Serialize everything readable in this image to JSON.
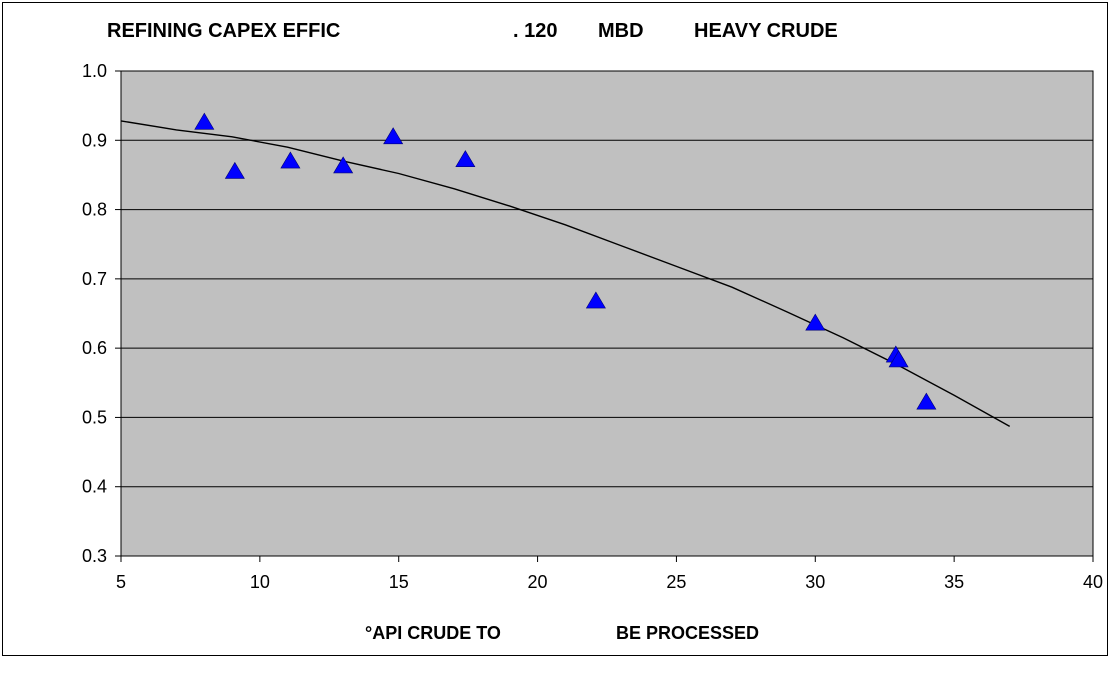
{
  "chart_data": {
    "type": "scatter",
    "title_parts": [
      "REFINING CAPEX EFFIC",
      ". 120",
      "MBD",
      "HEAVY CRUDE"
    ],
    "xlabel_parts": [
      "°API CRUDE TO",
      "BE PROCESSED"
    ],
    "ylabel": "",
    "xlim": [
      5,
      40
    ],
    "ylim": [
      0.3,
      1.0
    ],
    "xticks": [
      5,
      10,
      15,
      20,
      25,
      30,
      35,
      40
    ],
    "yticks": [
      "0.3",
      "0.4",
      "0.5",
      "0.6",
      "0.7",
      "0.8",
      "0.9",
      "1.0"
    ],
    "grid": "horizontal",
    "colors": {
      "plot_bg": "#c0c0c0",
      "marker": "#0000ff",
      "trendline": "#000000"
    },
    "series": [
      {
        "marker": "triangle",
        "x": [
          8.0,
          9.1,
          11.1,
          13.0,
          14.8,
          17.4,
          22.1,
          30.0,
          32.9,
          33.0,
          34.0
        ],
        "y": [
          0.926,
          0.855,
          0.87,
          0.863,
          0.905,
          0.872,
          0.668,
          0.636,
          0.59,
          0.583,
          0.522
        ]
      }
    ],
    "trendline": {
      "x": [
        5,
        7,
        9,
        11,
        13,
        15,
        17,
        19,
        21,
        23,
        25,
        27,
        29,
        31,
        33,
        35,
        37
      ],
      "y": [
        0.928,
        0.915,
        0.905,
        0.89,
        0.87,
        0.852,
        0.83,
        0.805,
        0.778,
        0.748,
        0.718,
        0.688,
        0.652,
        0.615,
        0.575,
        0.532,
        0.487
      ]
    }
  }
}
